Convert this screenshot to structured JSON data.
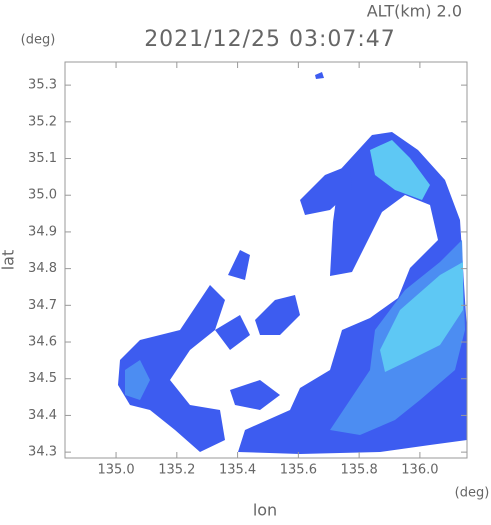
{
  "chart_data": {
    "type": "radar",
    "title": "2021/12/25 03:07:47",
    "altitude": "ALT(km) 2.0",
    "x_label": "lon",
    "y_label": "lat",
    "x_unit": "(deg)",
    "y_unit": "(deg)",
    "xlim": [
      134.832,
      136.155
    ],
    "ylim": [
      34.284,
      35.363
    ],
    "xticks": [
      {
        "value": 135,
        "label": "135.0"
      },
      135.2,
      135.4,
      135.6,
      135.8,
      {
        "value": 136,
        "label": "136.0"
      }
    ],
    "yticks": [
      34.3,
      34.4,
      34.5,
      34.6,
      34.7,
      34.8,
      34.9,
      {
        "value": 35,
        "label": "35.0"
      },
      35.1,
      35.2,
      35.3
    ]
  }
}
